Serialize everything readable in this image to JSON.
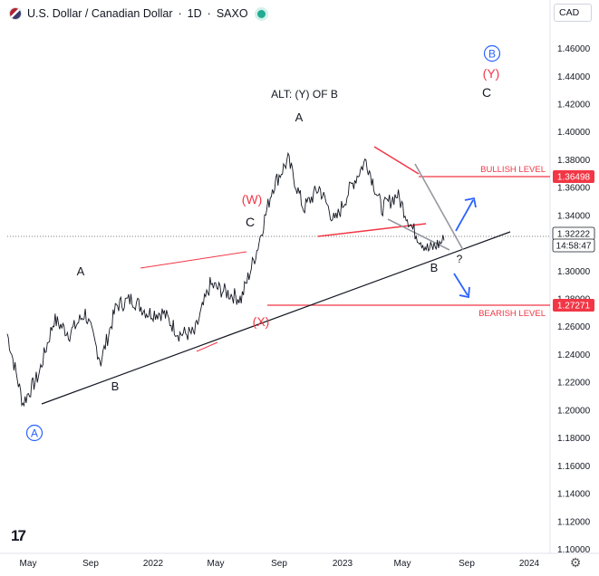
{
  "header": {
    "symbol": "U.S. Dollar / Canadian Dollar",
    "timeframe": "1D",
    "exchange": "SAXO",
    "separator": "·",
    "slash": "/"
  },
  "currency_button": "CAD",
  "chart_data": {
    "type": "line",
    "title": "U.S. Dollar / Canadian Dollar · 1D · SAXO",
    "y_ticks": [
      "1.10000",
      "1.12000",
      "1.14000",
      "1.16000",
      "1.18000",
      "1.20000",
      "1.22000",
      "1.24000",
      "1.26000",
      "1.28000",
      "1.30000",
      "1.32000",
      "1.34000",
      "1.36000",
      "1.38000",
      "1.40000",
      "1.42000",
      "1.44000",
      "1.46000"
    ],
    "x_ticks": [
      "May",
      "Sep",
      "2022",
      "May",
      "Sep",
      "2023",
      "May",
      "Sep",
      "2024"
    ],
    "ylim": [
      1.1,
      1.46
    ],
    "grid": false,
    "series": [
      {
        "x": [
          "2021-04",
          "2021-05",
          "2021-06",
          "2021-07",
          "2021-08",
          "2021-09",
          "2021-10",
          "2021-11",
          "2021-12",
          "2022-01",
          "2022-02",
          "2022-03",
          "2022-04",
          "2022-05",
          "2022-06",
          "2022-07",
          "2022-08",
          "2022-09",
          "2022-10",
          "2022-11",
          "2022-12",
          "2023-01",
          "2023-02",
          "2023-03",
          "2023-04",
          "2023-05",
          "2023-06",
          "2023-07",
          "2023-08"
        ],
        "values": [
          1.255,
          1.205,
          1.225,
          1.265,
          1.255,
          1.27,
          1.235,
          1.275,
          1.28,
          1.27,
          1.27,
          1.255,
          1.255,
          1.29,
          1.285,
          1.28,
          1.315,
          1.36,
          1.38,
          1.345,
          1.36,
          1.335,
          1.36,
          1.38,
          1.345,
          1.355,
          1.33,
          1.315,
          1.322
        ]
      }
    ],
    "price_labels": [
      {
        "text": "1.36498",
        "value": 1.36498,
        "color": "#f23645"
      },
      {
        "text": "1.32222",
        "value": 1.32222,
        "color": "#131722"
      },
      {
        "text": "14:58:47",
        "value": 1.3188,
        "color": "#131722"
      },
      {
        "text": "1.27271",
        "value": 1.27271,
        "color": "#f23645"
      }
    ],
    "current_price": 1.32222,
    "bullish_level": 1.36498,
    "bearish_level": 1.27271,
    "annotations": {
      "bullish_level_label": "BULLISH LEVEL",
      "bearish_level_label": "BEARISH LEVEL",
      "alt_label": "ALT: (Y) OF B",
      "wave_a_circled": "A",
      "wave_b_circled": "B",
      "wave_y": "(Y)",
      "wave_c_top": "C",
      "wave_a_top": "A",
      "wave_w": "(W)",
      "wave_c_mid": "C",
      "wave_a_small": "A",
      "wave_b_low": "B",
      "wave_x": "(X)",
      "wave_b_recent": "B",
      "question_mark": "?"
    }
  }
}
